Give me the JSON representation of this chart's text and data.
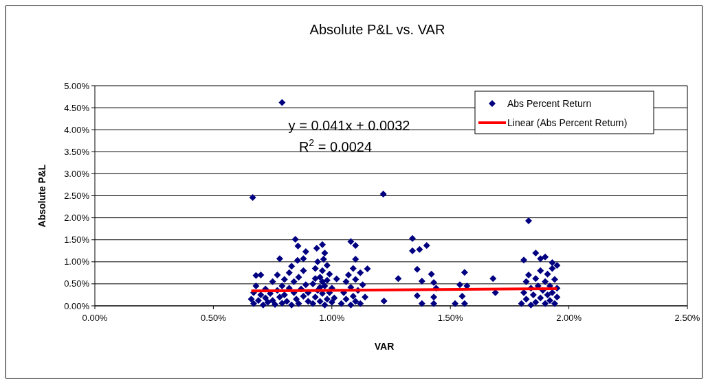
{
  "chart_data": {
    "type": "scatter",
    "title": "Absolute P&L vs. VAR",
    "xlabel": "VAR",
    "ylabel": "Absolute P&L",
    "xlim": [
      0,
      2.5
    ],
    "xticks": [
      {
        "value": 0,
        "label": "0.00%"
      },
      {
        "value": 0.5,
        "label": "0.50%"
      },
      {
        "value": 1,
        "label": "1.00%"
      },
      {
        "value": 1.5,
        "label": "1.50%"
      },
      {
        "value": 2,
        "label": "2.00%"
      },
      {
        "value": 2.5,
        "label": "2.50%"
      }
    ],
    "ylim": [
      0,
      5
    ],
    "yticks": [
      {
        "value": 0,
        "label": "0.00%"
      },
      {
        "value": 0.5,
        "label": "0.50%"
      },
      {
        "value": 1,
        "label": "1.00%"
      },
      {
        "value": 1.5,
        "label": "1.50%"
      },
      {
        "value": 2,
        "label": "2.00%"
      },
      {
        "value": 2.5,
        "label": "2.50%"
      },
      {
        "value": 3,
        "label": "3.00%"
      },
      {
        "value": 3.5,
        "label": "3.50%"
      },
      {
        "value": 4,
        "label": "4.00%"
      },
      {
        "value": 4.5,
        "label": "4.50%"
      },
      {
        "value": 5,
        "label": "5.00%"
      }
    ],
    "grid": "y",
    "legend": "top right",
    "annotations": [
      "y = 0.041x + 0.0032",
      "R$^{2}$ = 0.0024"
    ],
    "series": [
      {
        "name": "Abs Percent Return",
        "marker": "diamond",
        "color": "#000080",
        "x": [
          0.666,
          0.79,
          1.217,
          1.83,
          0.846,
          0.857,
          0.89,
          0.78,
          0.855,
          0.88,
          0.936,
          0.96,
          0.965,
          1.08,
          1.1,
          1.1,
          1.15,
          0.83,
          0.68,
          0.7,
          1.02,
          1.34,
          1.34,
          1.37,
          1.4,
          1.36,
          1.38,
          1.42,
          1.43,
          1.28,
          1.22,
          1.36,
          1.38,
          1.43,
          1.43,
          1.44,
          1.56,
          1.54,
          1.57,
          1.55,
          1.52,
          1.56,
          1.68,
          1.69,
          1.81,
          1.86,
          1.88,
          1.9,
          1.93,
          0.66,
          0.67,
          0.67,
          0.68,
          0.69,
          0.7,
          0.71,
          0.72,
          0.72,
          0.73,
          0.74,
          0.75,
          0.75,
          0.76,
          0.77,
          0.77,
          0.78,
          0.79,
          0.79,
          0.8,
          0.8,
          0.81,
          0.82,
          0.82,
          0.83,
          0.84,
          0.84,
          0.85,
          0.86,
          0.86,
          0.87,
          0.88,
          0.88,
          0.89,
          0.9,
          0.9,
          0.92,
          0.92,
          0.93,
          0.93,
          0.94,
          0.94,
          0.95,
          0.95,
          0.96,
          0.96,
          0.97,
          0.97,
          0.97,
          0.98,
          0.98,
          0.98,
          0.99,
          0.99,
          1.0,
          1.0,
          1.01,
          0.95,
          0.96,
          0.93,
          1.04,
          1.05,
          1.06,
          1.06,
          1.07,
          1.08,
          1.08,
          1.09,
          1.09,
          1.1,
          1.1,
          1.11,
          1.12,
          1.12,
          1.13,
          1.14,
          1.8,
          1.81,
          1.82,
          1.82,
          1.83,
          1.84,
          1.84,
          1.85,
          1.86,
          1.86,
          1.87,
          1.88,
          1.88,
          1.89,
          1.9,
          1.9,
          1.91,
          1.91,
          1.92,
          1.92,
          1.93,
          1.93,
          1.94,
          1.94,
          1.95,
          1.95,
          1.95
        ],
        "values": [
          2.46,
          4.62,
          2.54,
          1.93,
          1.51,
          1.36,
          1.23,
          1.07,
          1.03,
          1.07,
          1.31,
          1.39,
          1.06,
          1.46,
          1.37,
          1.06,
          0.84,
          0.9,
          0.69,
          0.7,
          0.61,
          1.53,
          1.25,
          1.28,
          1.37,
          0.83,
          0.56,
          0.72,
          0.53,
          0.62,
          0.11,
          0.23,
          0.05,
          0.2,
          0.05,
          0.4,
          0.76,
          0.48,
          0.45,
          0.22,
          0.05,
          0.05,
          0.62,
          0.3,
          1.04,
          1.2,
          1.07,
          1.11,
          0.98,
          0.15,
          0.05,
          0.3,
          0.45,
          0.12,
          0.25,
          0.02,
          0.18,
          0.38,
          0.08,
          0.28,
          0.55,
          0.12,
          0.03,
          0.35,
          0.7,
          0.2,
          0.45,
          0.06,
          0.6,
          0.25,
          0.1,
          0.4,
          0.75,
          0.02,
          0.3,
          0.55,
          0.15,
          0.65,
          0.05,
          0.38,
          0.22,
          0.8,
          0.48,
          0.1,
          0.3,
          0.05,
          0.5,
          0.2,
          0.85,
          0.35,
          1.0,
          0.1,
          0.65,
          0.28,
          0.8,
          0.02,
          0.45,
          1.2,
          0.15,
          0.58,
          0.92,
          0.3,
          0.72,
          0.08,
          0.4,
          0.18,
          0.42,
          0.55,
          0.62,
          0.05,
          0.3,
          0.55,
          0.15,
          0.7,
          0.02,
          0.42,
          0.85,
          0.22,
          0.6,
          0.1,
          0.35,
          0.75,
          0.05,
          0.48,
          0.2,
          0.05,
          0.3,
          0.55,
          0.15,
          0.7,
          0.02,
          0.4,
          0.25,
          0.62,
          0.08,
          0.45,
          0.18,
          0.8,
          0.35,
          0.05,
          0.55,
          0.25,
          0.72,
          0.12,
          0.45,
          0.85,
          0.3,
          0.05,
          0.6,
          0.2,
          0.92,
          0.4
        ]
      },
      {
        "name": "Linear (Abs Percent Return)",
        "type": "line",
        "marker": "none",
        "color": "#ff0000",
        "x": [
          0.66,
          1.95
        ],
        "values": [
          0.34,
          0.39
        ]
      }
    ]
  }
}
